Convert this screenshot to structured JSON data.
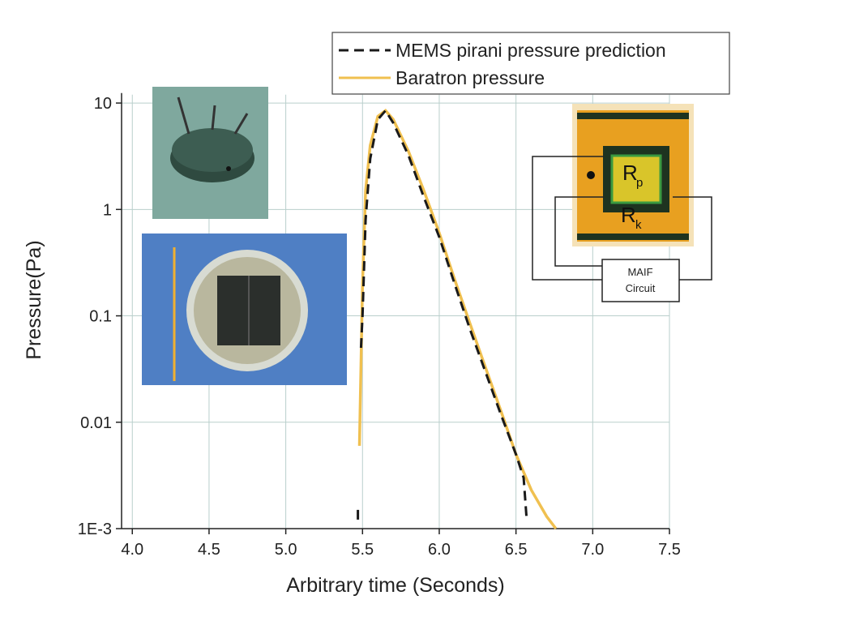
{
  "chart_data": {
    "type": "line",
    "x_label": "Arbitrary time (Seconds)",
    "y_label": "Pressure(Pa)",
    "y_scale": "log",
    "grid": true,
    "legend": "top-right",
    "xlim": [
      3.93,
      7.5
    ],
    "xticks": [
      {
        "value": 4.0,
        "label": "4.0"
      },
      {
        "value": 4.5,
        "label": "4.5"
      },
      {
        "value": 5.0,
        "label": "5.0"
      },
      {
        "value": 5.5,
        "label": "5.5"
      },
      {
        "value": 6.0,
        "label": "6.0"
      },
      {
        "value": 6.5,
        "label": "6.5"
      },
      {
        "value": 7.0,
        "label": "7.0"
      },
      {
        "value": 7.5,
        "label": "7.5"
      }
    ],
    "ylim": [
      0.001,
      12
    ],
    "yticks": [
      10,
      1,
      0.1,
      0.01,
      {
        "value": 0.001,
        "label": "1E-3"
      }
    ],
    "series": [
      {
        "name": "MEMS pirani pressure prediction",
        "color": "#1a1a1a",
        "dash": true,
        "x": [
          5.47,
          5.47,
          null,
          5.49,
          5.5,
          5.52,
          5.55,
          5.6,
          5.65,
          5.7,
          5.8,
          5.9,
          6.0,
          6.1,
          6.2,
          6.3,
          6.4,
          6.5,
          6.55,
          6.57
        ],
        "values": [
          0.0015,
          0.0012,
          null,
          0.05,
          0.1,
          0.8,
          3,
          7,
          8.5,
          6.5,
          3.2,
          1.3,
          0.55,
          0.2,
          0.075,
          0.03,
          0.012,
          0.005,
          0.003,
          0.0012
        ]
      },
      {
        "name": "Baratron pressure",
        "color": "#f0c050",
        "dash": false,
        "x": [
          5.48,
          5.5,
          5.52,
          5.55,
          5.6,
          5.65,
          5.7,
          5.8,
          5.9,
          6.0,
          6.1,
          6.2,
          6.3,
          6.4,
          6.5,
          6.6,
          6.7,
          6.76
        ],
        "values": [
          0.006,
          0.2,
          1.5,
          4,
          7.5,
          8.5,
          7,
          3.5,
          1.5,
          0.6,
          0.22,
          0.085,
          0.033,
          0.013,
          0.005,
          0.0023,
          0.0013,
          0.001
        ]
      }
    ],
    "annotations": [
      "R",
      "p",
      "R",
      "k",
      "MAIF",
      "Circuit"
    ]
  }
}
